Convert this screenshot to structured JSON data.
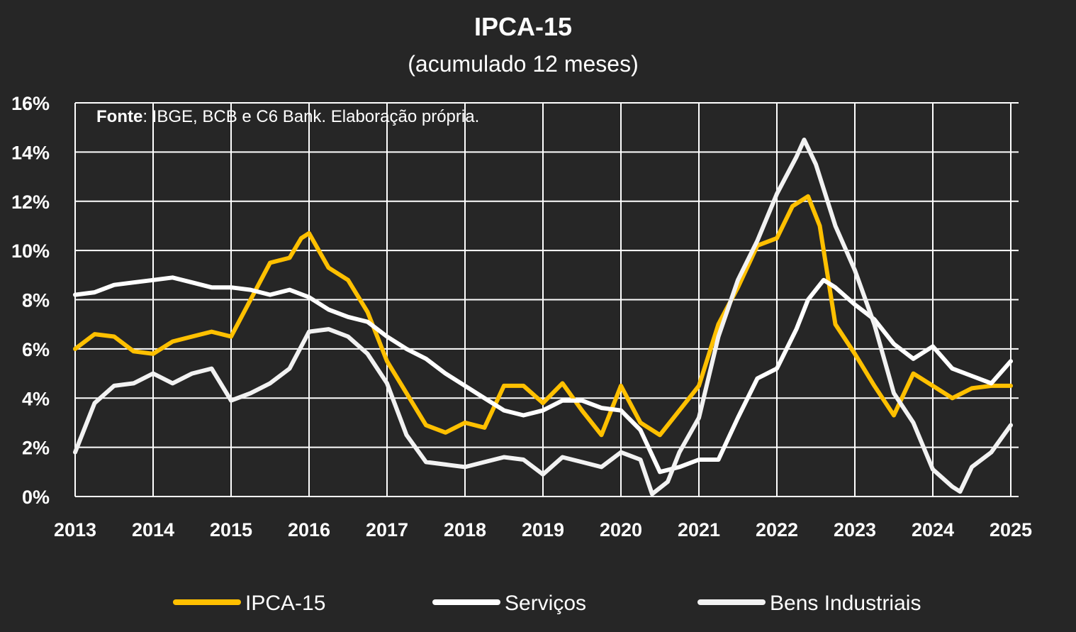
{
  "chart_data": {
    "type": "line",
    "title": "IPCA-15",
    "subtitle": "(acumulado 12 meses)",
    "source_bold": "Fonte",
    "source_rest": ": IBGE, BCB e C6 Bank. Elaboração própria.",
    "xlabel": "",
    "ylabel": "",
    "xlim": [
      2013,
      2025.1
    ],
    "ylim": [
      0,
      16
    ],
    "x_ticks": [
      "2013",
      "2014",
      "2015",
      "2016",
      "2017",
      "2018",
      "2019",
      "2020",
      "2021",
      "2022",
      "2023",
      "2024",
      "2025"
    ],
    "y_ticks": [
      "0%",
      "2%",
      "4%",
      "6%",
      "8%",
      "10%",
      "12%",
      "14%",
      "16%"
    ],
    "grid": true,
    "legend_position": "bottom",
    "series": [
      {
        "name": "IPCA-15",
        "color": "#FFC000",
        "points": [
          [
            2013.0,
            6.0
          ],
          [
            2013.25,
            6.6
          ],
          [
            2013.5,
            6.5
          ],
          [
            2013.75,
            5.9
          ],
          [
            2014.0,
            5.8
          ],
          [
            2014.25,
            6.3
          ],
          [
            2014.5,
            6.5
          ],
          [
            2014.75,
            6.7
          ],
          [
            2015.0,
            6.5
          ],
          [
            2015.25,
            8.0
          ],
          [
            2015.5,
            9.5
          ],
          [
            2015.75,
            9.7
          ],
          [
            2015.9,
            10.5
          ],
          [
            2016.0,
            10.7
          ],
          [
            2016.25,
            9.3
          ],
          [
            2016.5,
            8.8
          ],
          [
            2016.75,
            7.5
          ],
          [
            2017.0,
            5.5
          ],
          [
            2017.25,
            4.2
          ],
          [
            2017.5,
            2.9
          ],
          [
            2017.75,
            2.6
          ],
          [
            2018.0,
            3.0
          ],
          [
            2018.25,
            2.8
          ],
          [
            2018.5,
            4.5
          ],
          [
            2018.75,
            4.5
          ],
          [
            2019.0,
            3.8
          ],
          [
            2019.25,
            4.6
          ],
          [
            2019.5,
            3.5
          ],
          [
            2019.75,
            2.5
          ],
          [
            2020.0,
            4.5
          ],
          [
            2020.25,
            3.0
          ],
          [
            2020.5,
            2.5
          ],
          [
            2020.75,
            3.5
          ],
          [
            2021.0,
            4.5
          ],
          [
            2021.25,
            7.0
          ],
          [
            2021.5,
            8.5
          ],
          [
            2021.75,
            10.2
          ],
          [
            2022.0,
            10.5
          ],
          [
            2022.2,
            11.8
          ],
          [
            2022.4,
            12.2
          ],
          [
            2022.55,
            11.0
          ],
          [
            2022.75,
            7.0
          ],
          [
            2023.0,
            5.8
          ],
          [
            2023.25,
            4.5
          ],
          [
            2023.5,
            3.3
          ],
          [
            2023.75,
            5.0
          ],
          [
            2024.0,
            4.5
          ],
          [
            2024.25,
            4.0
          ],
          [
            2024.5,
            4.4
          ],
          [
            2024.75,
            4.5
          ],
          [
            2025.0,
            4.5
          ]
        ]
      },
      {
        "name": "Serviços",
        "color": "#FFFFFF",
        "points": [
          [
            2013.0,
            8.2
          ],
          [
            2013.25,
            8.3
          ],
          [
            2013.5,
            8.6
          ],
          [
            2013.75,
            8.7
          ],
          [
            2014.0,
            8.8
          ],
          [
            2014.25,
            8.9
          ],
          [
            2014.5,
            8.7
          ],
          [
            2014.75,
            8.5
          ],
          [
            2015.0,
            8.5
          ],
          [
            2015.25,
            8.4
          ],
          [
            2015.5,
            8.2
          ],
          [
            2015.75,
            8.4
          ],
          [
            2016.0,
            8.1
          ],
          [
            2016.25,
            7.6
          ],
          [
            2016.5,
            7.3
          ],
          [
            2016.75,
            7.1
          ],
          [
            2017.0,
            6.5
          ],
          [
            2017.25,
            6.0
          ],
          [
            2017.5,
            5.6
          ],
          [
            2017.75,
            5.0
          ],
          [
            2018.0,
            4.5
          ],
          [
            2018.25,
            4.0
          ],
          [
            2018.5,
            3.5
          ],
          [
            2018.75,
            3.3
          ],
          [
            2019.0,
            3.5
          ],
          [
            2019.25,
            3.9
          ],
          [
            2019.5,
            3.9
          ],
          [
            2019.75,
            3.6
          ],
          [
            2020.0,
            3.5
          ],
          [
            2020.25,
            2.7
          ],
          [
            2020.5,
            1.0
          ],
          [
            2020.75,
            1.2
          ],
          [
            2021.0,
            1.5
          ],
          [
            2021.25,
            1.5
          ],
          [
            2021.5,
            3.2
          ],
          [
            2021.75,
            4.8
          ],
          [
            2022.0,
            5.2
          ],
          [
            2022.25,
            6.8
          ],
          [
            2022.4,
            8.0
          ],
          [
            2022.6,
            8.8
          ],
          [
            2022.75,
            8.5
          ],
          [
            2023.0,
            7.8
          ],
          [
            2023.25,
            7.2
          ],
          [
            2023.5,
            6.2
          ],
          [
            2023.75,
            5.6
          ],
          [
            2024.0,
            6.1
          ],
          [
            2024.25,
            5.2
          ],
          [
            2024.5,
            4.9
          ],
          [
            2024.75,
            4.6
          ],
          [
            2025.0,
            5.5
          ]
        ]
      },
      {
        "name": "Bens Industriais",
        "color": "#F2F2F2",
        "points": [
          [
            2013.0,
            1.8
          ],
          [
            2013.25,
            3.8
          ],
          [
            2013.5,
            4.5
          ],
          [
            2013.75,
            4.6
          ],
          [
            2014.0,
            5.0
          ],
          [
            2014.25,
            4.6
          ],
          [
            2014.5,
            5.0
          ],
          [
            2014.75,
            5.2
          ],
          [
            2015.0,
            3.9
          ],
          [
            2015.25,
            4.2
          ],
          [
            2015.5,
            4.6
          ],
          [
            2015.75,
            5.2
          ],
          [
            2016.0,
            6.7
          ],
          [
            2016.25,
            6.8
          ],
          [
            2016.5,
            6.5
          ],
          [
            2016.75,
            5.8
          ],
          [
            2017.0,
            4.6
          ],
          [
            2017.25,
            2.5
          ],
          [
            2017.5,
            1.4
          ],
          [
            2017.75,
            1.3
          ],
          [
            2018.0,
            1.2
          ],
          [
            2018.25,
            1.4
          ],
          [
            2018.5,
            1.6
          ],
          [
            2018.75,
            1.5
          ],
          [
            2019.0,
            0.9
          ],
          [
            2019.25,
            1.6
          ],
          [
            2019.5,
            1.4
          ],
          [
            2019.75,
            1.2
          ],
          [
            2020.0,
            1.8
          ],
          [
            2020.25,
            1.5
          ],
          [
            2020.4,
            0.1
          ],
          [
            2020.6,
            0.6
          ],
          [
            2020.75,
            1.8
          ],
          [
            2021.0,
            3.2
          ],
          [
            2021.25,
            6.5
          ],
          [
            2021.5,
            8.8
          ],
          [
            2021.75,
            10.4
          ],
          [
            2022.0,
            12.3
          ],
          [
            2022.25,
            13.8
          ],
          [
            2022.35,
            14.5
          ],
          [
            2022.5,
            13.5
          ],
          [
            2022.75,
            11.0
          ],
          [
            2023.0,
            9.2
          ],
          [
            2023.25,
            7.0
          ],
          [
            2023.5,
            4.2
          ],
          [
            2023.75,
            3.0
          ],
          [
            2024.0,
            1.1
          ],
          [
            2024.25,
            0.4
          ],
          [
            2024.35,
            0.2
          ],
          [
            2024.5,
            1.2
          ],
          [
            2024.75,
            1.8
          ],
          [
            2025.0,
            2.9
          ]
        ]
      }
    ]
  }
}
